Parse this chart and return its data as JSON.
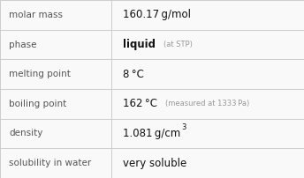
{
  "rows": [
    {
      "label": "molar mass",
      "value": "160.17 g/mol",
      "annotation": "",
      "sup": ""
    },
    {
      "label": "phase",
      "value": "liquid",
      "annotation": "(at STP)",
      "sup": ""
    },
    {
      "label": "melting point",
      "value": "8 °C",
      "annotation": "",
      "sup": ""
    },
    {
      "label": "boiling point",
      "value": "162 °C",
      "annotation": "(measured at 1333 Pa)",
      "sup": ""
    },
    {
      "label": "density",
      "value": "1.081 g/cm",
      "annotation": "",
      "sup": "3"
    },
    {
      "label": "solubility in water",
      "value": "very soluble",
      "annotation": "",
      "sup": ""
    }
  ],
  "bg_color": "#f9f9f9",
  "border_color": "#cccccc",
  "label_color": "#555555",
  "value_color": "#111111",
  "annotation_color": "#999999",
  "label_fontsize": 7.5,
  "value_fontsize": 8.5,
  "annotation_fontsize": 6.0,
  "sup_fontsize": 6.0,
  "col_split": 0.365,
  "fig_width": 3.44,
  "fig_height": 2.02,
  "dpi": 100
}
